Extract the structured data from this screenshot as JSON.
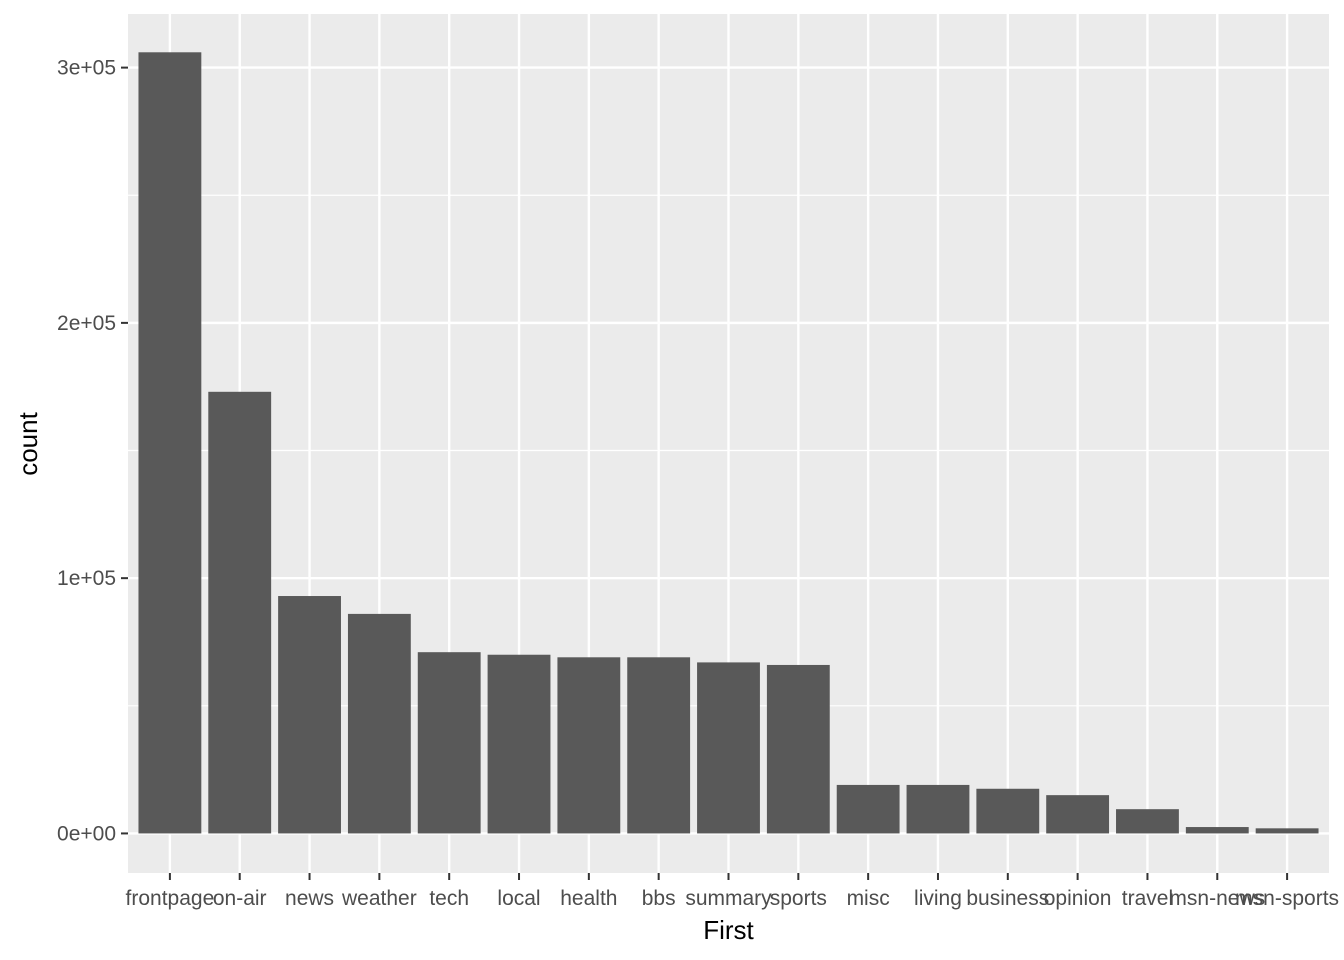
{
  "colors": {
    "panel_background": "#ebebeb",
    "grid_major": "#ffffff",
    "bar_fill": "#595959",
    "tick_label": "#4d4d4d",
    "tick_mark": "#333333"
  },
  "chart_data": {
    "type": "bar",
    "title": "",
    "xlabel": "First",
    "ylabel": "count",
    "categories": [
      "frontpage",
      "on-air",
      "news",
      "weather",
      "tech",
      "local",
      "health",
      "bbs",
      "summary",
      "sports",
      "misc",
      "living",
      "business",
      "opinion",
      "travel",
      "msn-news",
      "msn-sports"
    ],
    "values": [
      306000,
      173000,
      93000,
      86000,
      71000,
      70000,
      69000,
      69000,
      67000,
      66000,
      19000,
      19000,
      17500,
      15000,
      9500,
      2500,
      2000
    ],
    "ylim": [
      -15500,
      321000
    ],
    "y_ticks": [
      0,
      100000,
      200000,
      300000
    ],
    "y_tick_labels": [
      "0e+00",
      "1e+05",
      "2e+05",
      "3e+05"
    ],
    "grid": true,
    "legend": "none"
  }
}
